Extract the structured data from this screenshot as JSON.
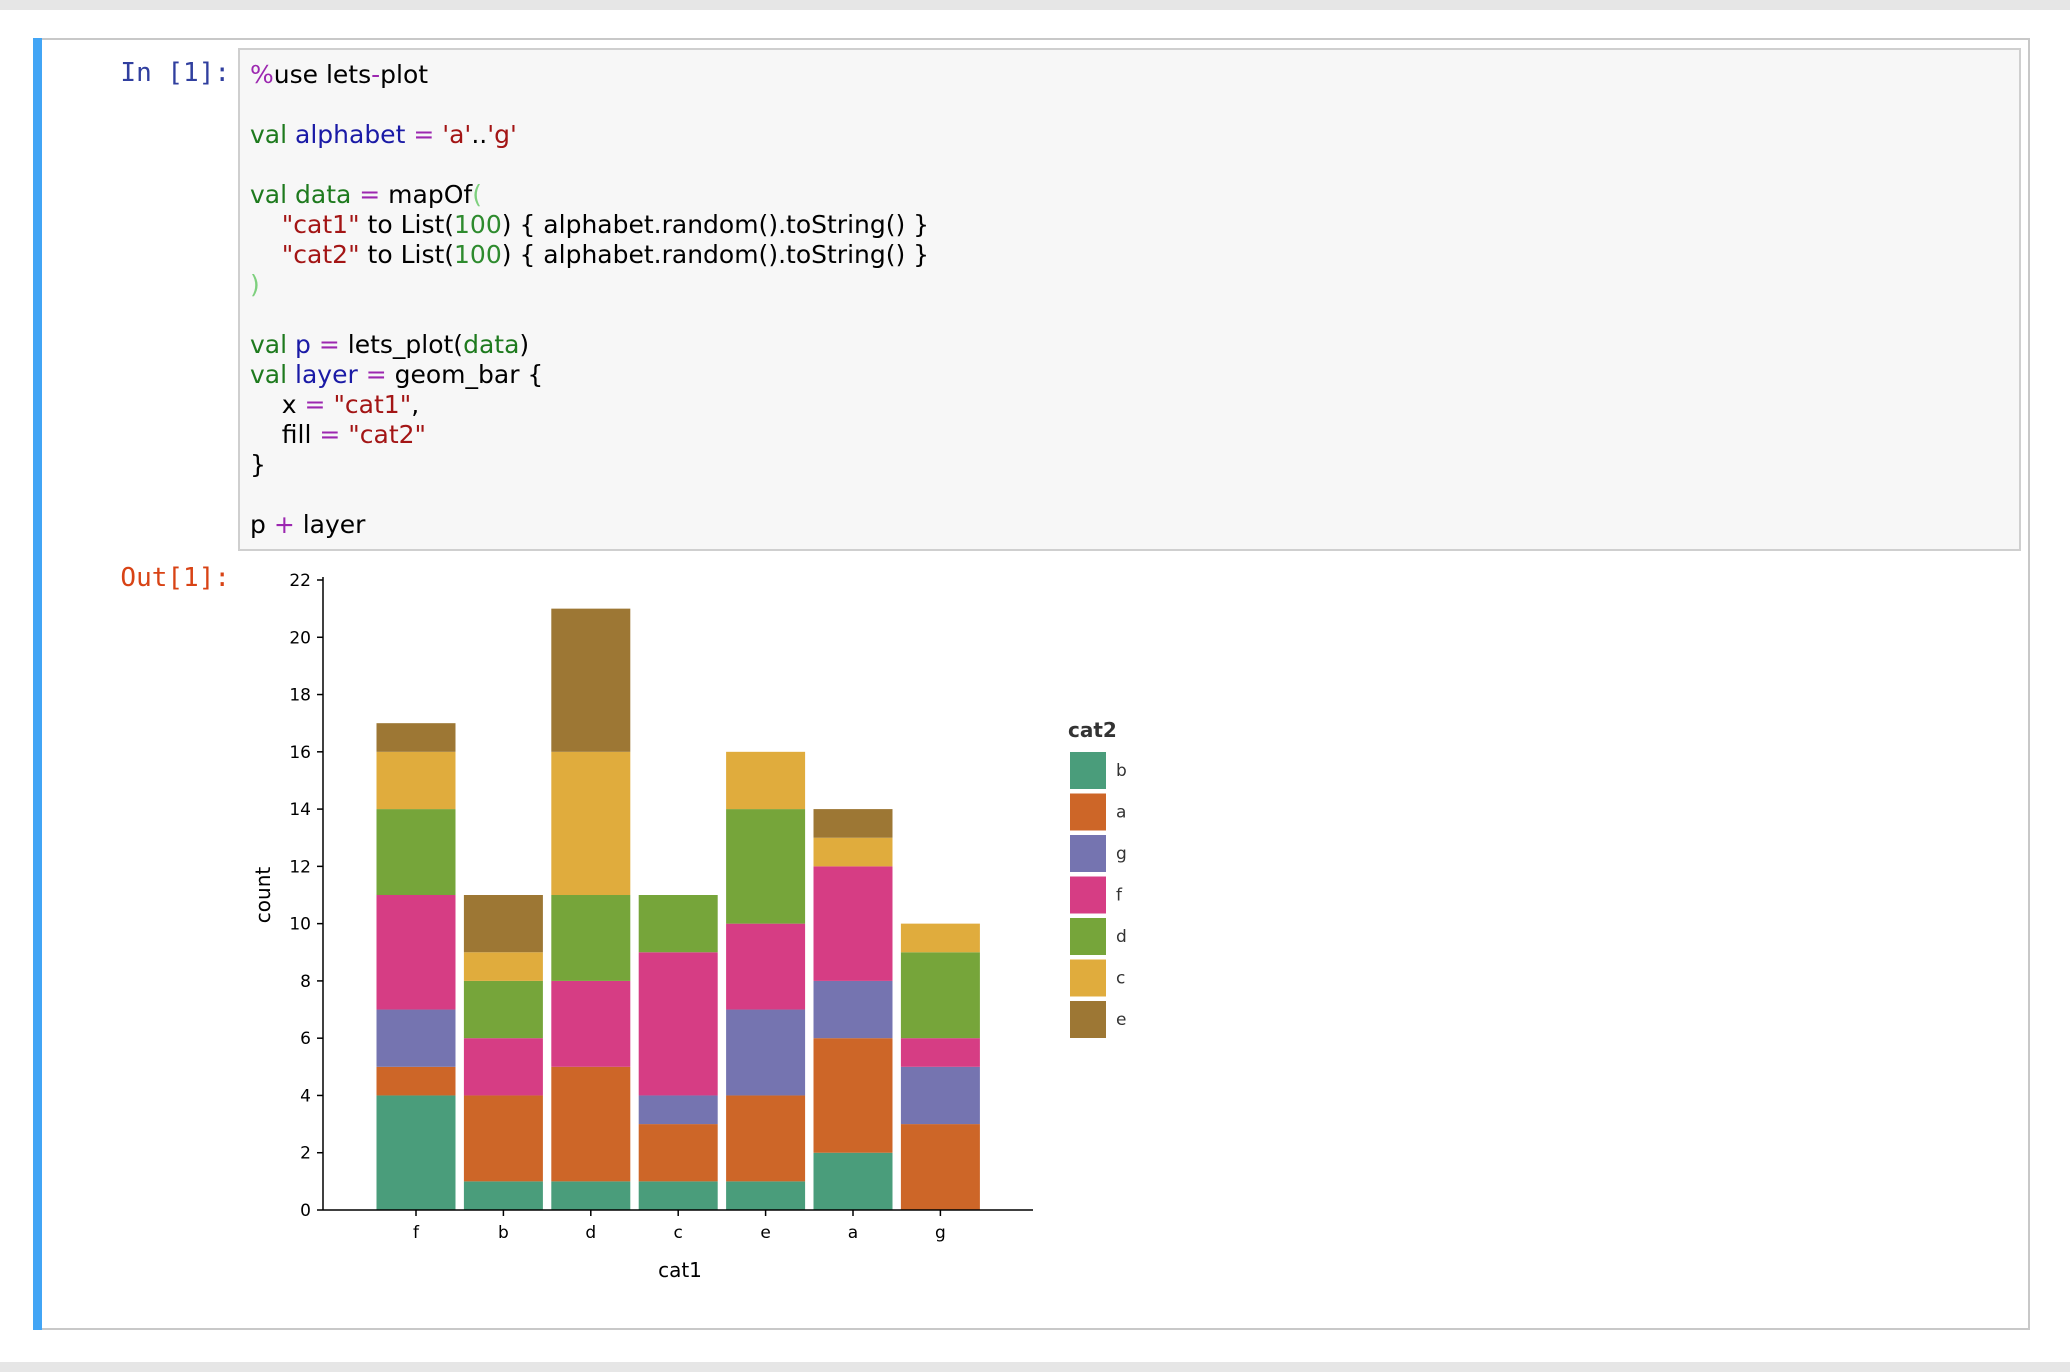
{
  "prompts": {
    "input": "In [1]:",
    "output": "Out[1]:"
  },
  "code_lines": [
    [
      {
        "t": "%",
        "c": "o"
      },
      {
        "t": "use lets",
        "c": ""
      },
      {
        "t": "-",
        "c": "o"
      },
      {
        "t": "plot",
        "c": ""
      }
    ],
    [],
    [
      {
        "t": "val",
        "c": "k"
      },
      {
        "t": " ",
        "c": ""
      },
      {
        "t": "alphabet",
        "c": "v"
      },
      {
        "t": " ",
        "c": ""
      },
      {
        "t": "=",
        "c": "o"
      },
      {
        "t": " ",
        "c": ""
      },
      {
        "t": "'a'",
        "c": "s"
      },
      {
        "t": "..",
        "c": ""
      },
      {
        "t": "'g'",
        "c": "s"
      }
    ],
    [],
    [
      {
        "t": "val",
        "c": "k"
      },
      {
        "t": " ",
        "c": ""
      },
      {
        "t": "data",
        "c": "k"
      },
      {
        "t": " ",
        "c": ""
      },
      {
        "t": "=",
        "c": "o"
      },
      {
        "t": " mapOf",
        "c": ""
      },
      {
        "t": "(",
        "c": "p"
      }
    ],
    [
      {
        "t": "    ",
        "c": ""
      },
      {
        "t": "\"cat1\"",
        "c": "s"
      },
      {
        "t": " to List(",
        "c": ""
      },
      {
        "t": "100",
        "c": "n"
      },
      {
        "t": ") { alphabet.random().toString() }",
        "c": ""
      }
    ],
    [
      {
        "t": "    ",
        "c": ""
      },
      {
        "t": "\"cat2\"",
        "c": "s"
      },
      {
        "t": " to List(",
        "c": ""
      },
      {
        "t": "100",
        "c": "n"
      },
      {
        "t": ") { alphabet.random().toString() }",
        "c": ""
      }
    ],
    [
      {
        "t": ")",
        "c": "p"
      }
    ],
    [],
    [
      {
        "t": "val",
        "c": "k"
      },
      {
        "t": " ",
        "c": ""
      },
      {
        "t": "p",
        "c": "v"
      },
      {
        "t": " ",
        "c": ""
      },
      {
        "t": "=",
        "c": "o"
      },
      {
        "t": " lets_plot(",
        "c": ""
      },
      {
        "t": "data",
        "c": "k"
      },
      {
        "t": ")",
        "c": ""
      }
    ],
    [
      {
        "t": "val",
        "c": "k"
      },
      {
        "t": " ",
        "c": ""
      },
      {
        "t": "layer",
        "c": "v"
      },
      {
        "t": " ",
        "c": ""
      },
      {
        "t": "=",
        "c": "o"
      },
      {
        "t": " geom_bar {",
        "c": ""
      }
    ],
    [
      {
        "t": "    x ",
        "c": ""
      },
      {
        "t": "=",
        "c": "o"
      },
      {
        "t": " ",
        "c": ""
      },
      {
        "t": "\"cat1\"",
        "c": "s"
      },
      {
        "t": ",",
        "c": ""
      }
    ],
    [
      {
        "t": "    fill ",
        "c": ""
      },
      {
        "t": "=",
        "c": "o"
      },
      {
        "t": " ",
        "c": ""
      },
      {
        "t": "\"cat2\"",
        "c": "s"
      }
    ],
    [
      {
        "t": "}",
        "c": ""
      }
    ],
    [],
    [
      {
        "t": "p ",
        "c": ""
      },
      {
        "t": "+",
        "c": "o"
      },
      {
        "t": " layer",
        "c": ""
      }
    ]
  ],
  "chart_data": {
    "type": "bar",
    "stacked": true,
    "categories": [
      "f",
      "b",
      "d",
      "c",
      "e",
      "a",
      "g"
    ],
    "xlabel": "cat1",
    "ylabel": "count",
    "ylim": [
      0,
      22
    ],
    "yticks": [
      0,
      2,
      4,
      6,
      8,
      10,
      12,
      14,
      16,
      18,
      20,
      22
    ],
    "legend_title": "cat2",
    "legend_position": "right",
    "grid": false,
    "series": [
      {
        "name": "b",
        "color": "#4a9d7b",
        "values": [
          4,
          1,
          1,
          1,
          1,
          2,
          0
        ]
      },
      {
        "name": "a",
        "color": "#cd6628",
        "values": [
          1,
          3,
          4,
          2,
          3,
          4,
          3
        ]
      },
      {
        "name": "g",
        "color": "#7574b0",
        "values": [
          2,
          0,
          0,
          1,
          3,
          2,
          2
        ]
      },
      {
        "name": "f",
        "color": "#d63d84",
        "values": [
          4,
          2,
          3,
          5,
          3,
          4,
          1
        ]
      },
      {
        "name": "d",
        "color": "#76a53a",
        "values": [
          3,
          2,
          3,
          2,
          4,
          0,
          3
        ]
      },
      {
        "name": "c",
        "color": "#e0ac3d",
        "values": [
          2,
          1,
          5,
          0,
          2,
          1,
          1
        ]
      },
      {
        "name": "e",
        "color": "#9d7734",
        "values": [
          1,
          2,
          5,
          0,
          0,
          1,
          0
        ]
      }
    ]
  }
}
